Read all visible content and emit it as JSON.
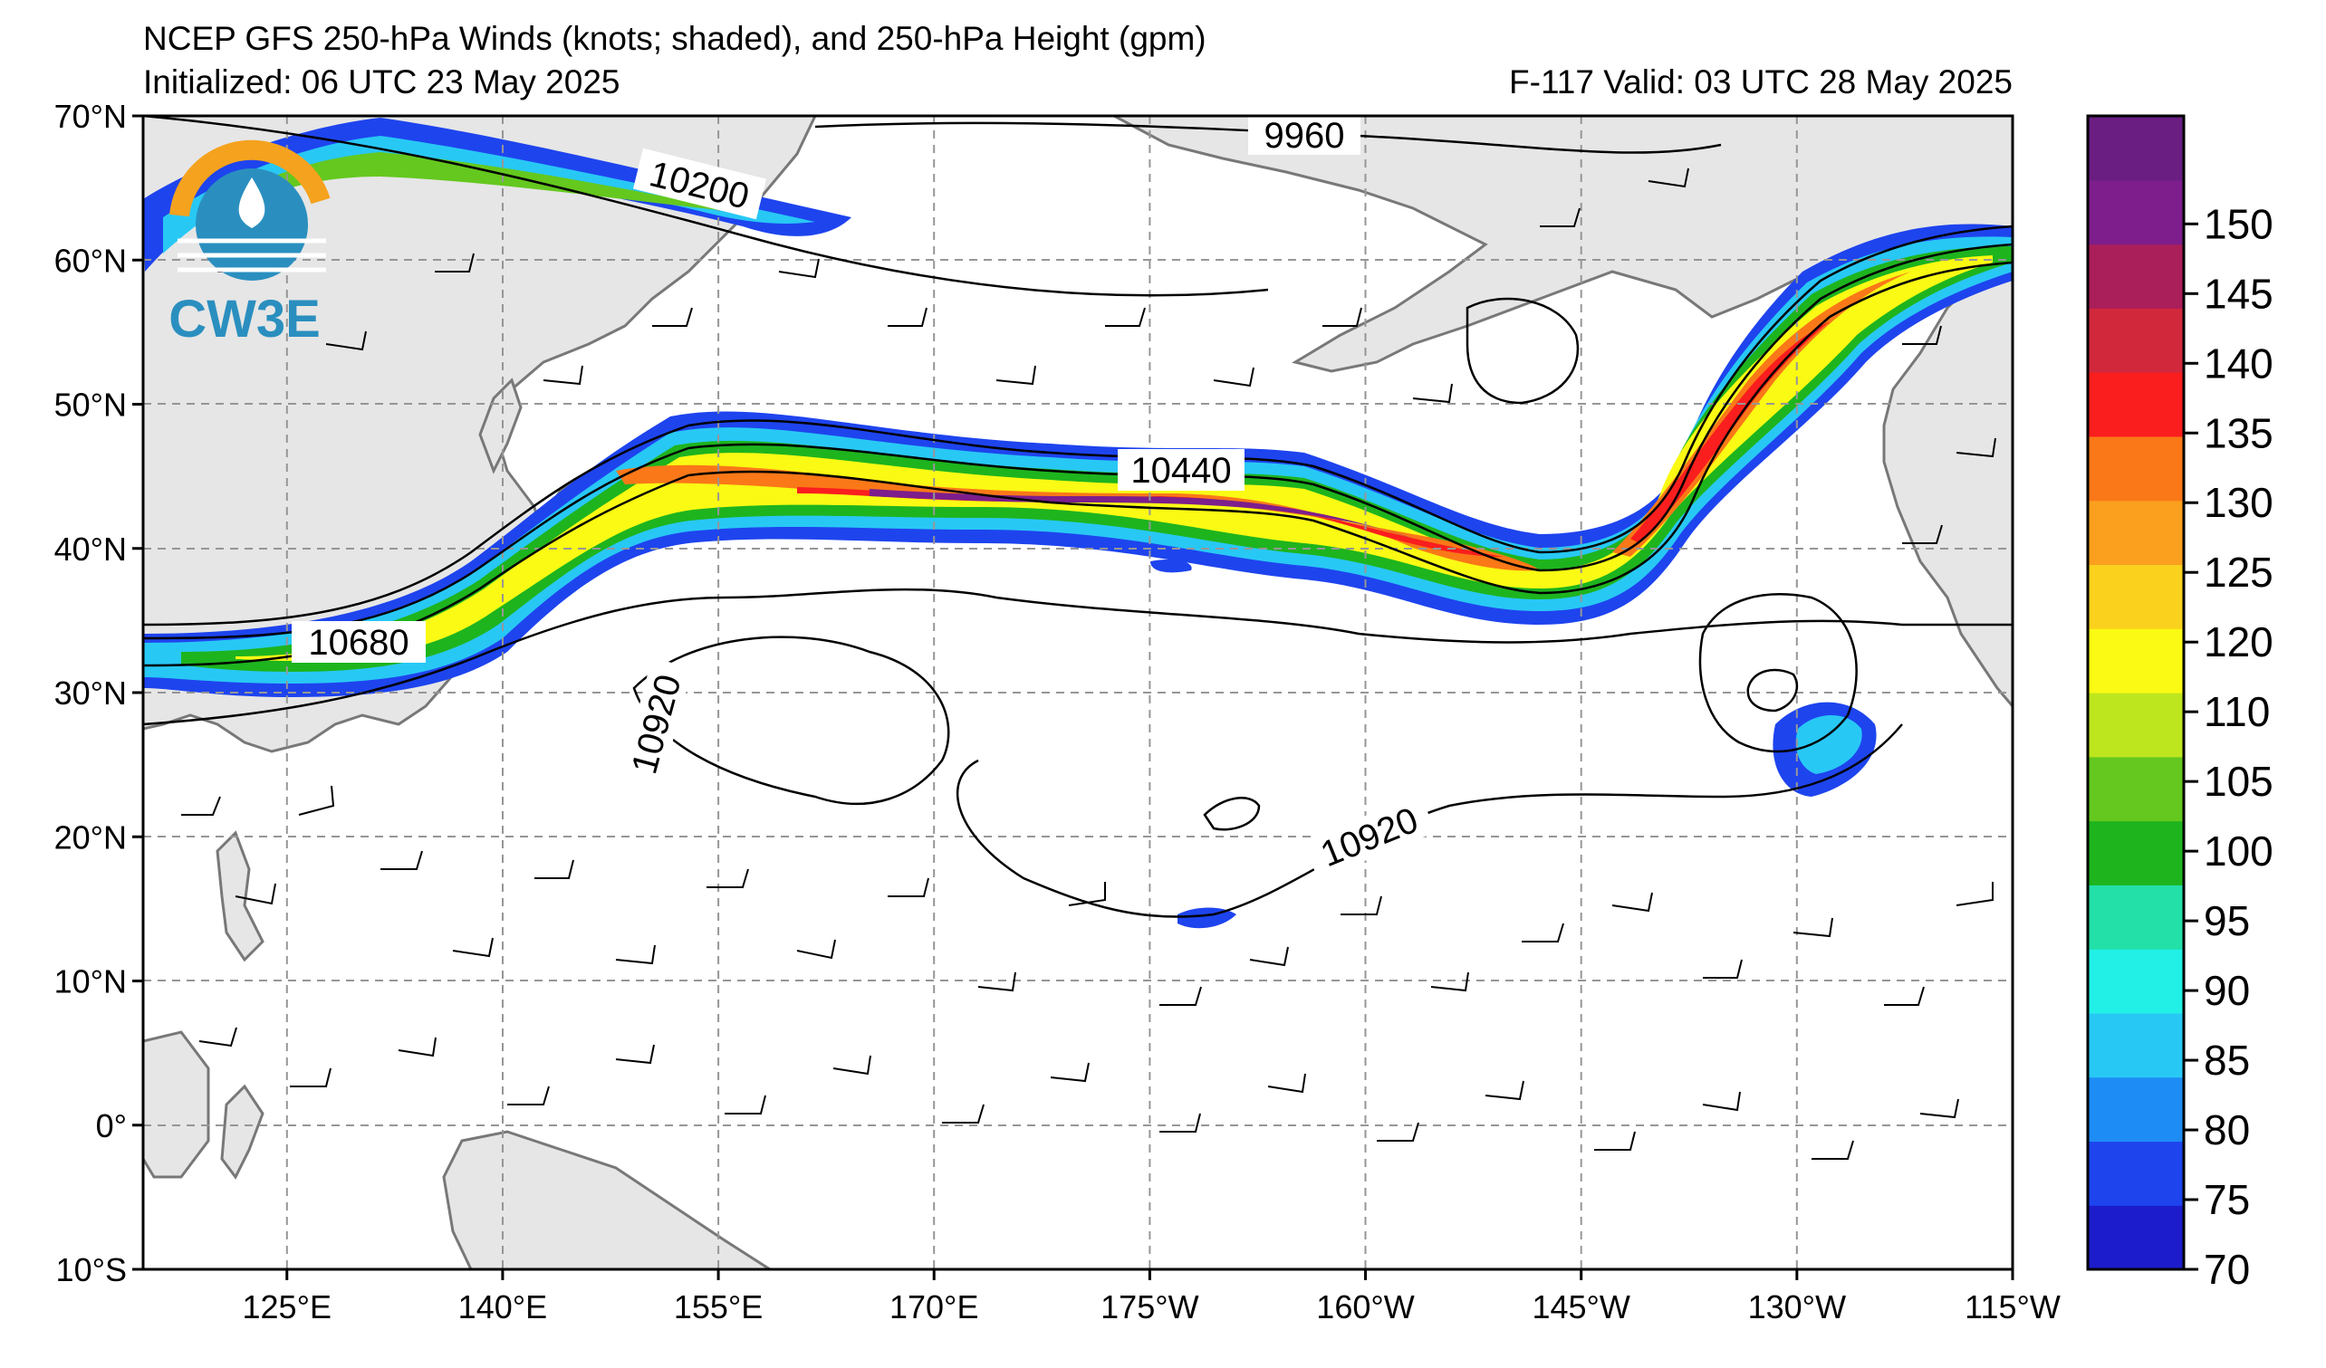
{
  "header": {
    "title": "NCEP GFS 250-hPa Winds (knots; shaded), and 250-hPa Height (gpm)",
    "initialized": "Initialized: 06 UTC 23 May 2025",
    "valid": "F-117  Valid: 03 UTC 28 May 2025"
  },
  "logo": {
    "text": "CW3E"
  },
  "axes": {
    "lat_labels": [
      "70°N",
      "60°N",
      "50°N",
      "40°N",
      "30°N",
      "20°N",
      "10°N",
      "0°",
      "10°S"
    ],
    "lat_values": [
      70,
      60,
      50,
      40,
      30,
      20,
      10,
      0,
      -10
    ],
    "lon_labels": [
      "125°E",
      "140°E",
      "155°E",
      "170°E",
      "175°W",
      "160°W",
      "145°W",
      "130°W",
      "115°W"
    ],
    "lon_values": [
      125,
      140,
      155,
      170,
      185,
      200,
      215,
      230,
      245
    ]
  },
  "map_extent": {
    "lon": [
      115,
      245
    ],
    "lat": [
      -10,
      70
    ]
  },
  "contour_labels": [
    {
      "text": "9960",
      "lon": 194,
      "lat": 68
    },
    {
      "text": "10200",
      "lon": 153,
      "lat": 65
    },
    {
      "text": "10440",
      "lon": 182,
      "lat": 45.5
    },
    {
      "text": "10680",
      "lon": 127,
      "lat": 33.5
    },
    {
      "text": "10920",
      "lon": 150.5,
      "lat": 27
    },
    {
      "text": "10920",
      "lon": 194.5,
      "lat": 20
    }
  ],
  "colorbar": {
    "ticks": [
      "70",
      "75",
      "80",
      "85",
      "90",
      "95",
      "100",
      "105",
      "110",
      "120",
      "125",
      "130",
      "135",
      "140",
      "145",
      "150"
    ],
    "colors": [
      "#1c1ccc",
      "#1e44ee",
      "#1e8cf5",
      "#28c8f5",
      "#22f0e6",
      "#23e0a8",
      "#1eb41e",
      "#64c81e",
      "#bee61e",
      "#fafa14",
      "#fad21e",
      "#faa01e",
      "#fa7818",
      "#fa1e1e",
      "#d2283c",
      "#aa1e5a",
      "#7d1e8c",
      "#6a1e82"
    ]
  },
  "colors": {
    "land": "#e6e6e6",
    "coast": "#787878",
    "grid": "#969696"
  }
}
